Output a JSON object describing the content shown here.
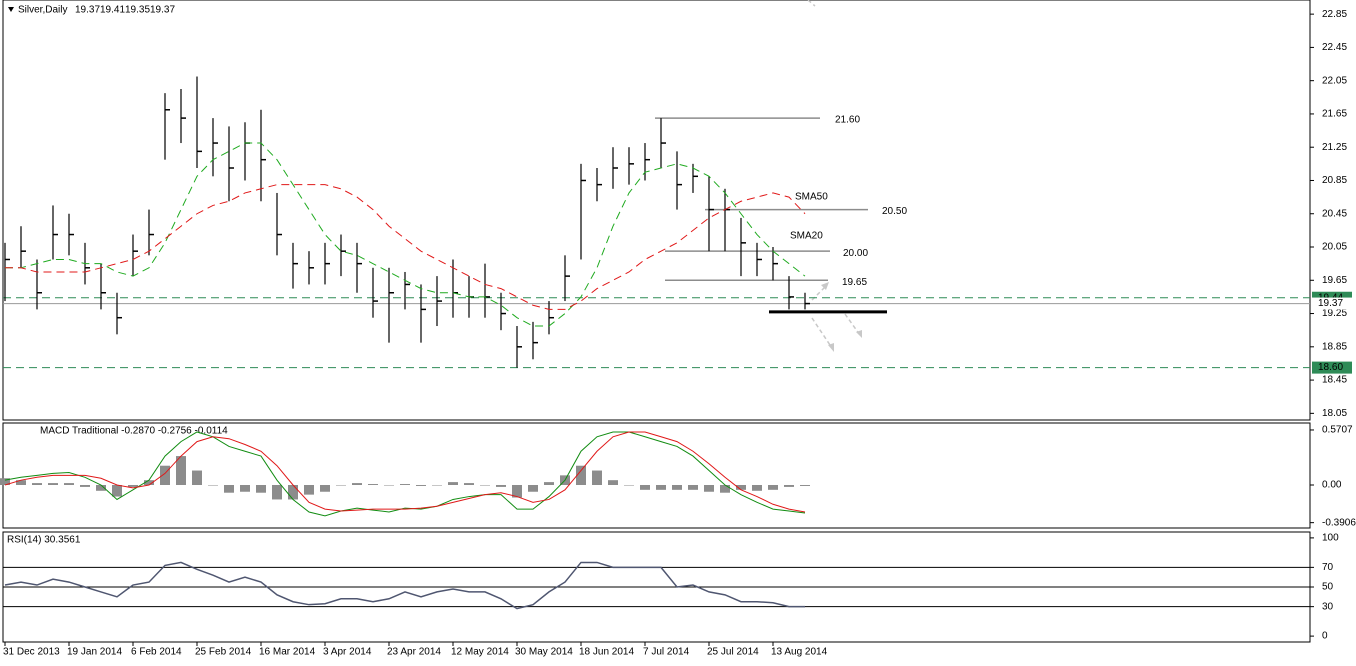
{
  "chart_data": [
    {
      "type": "hlc",
      "title": "Silver,Daily",
      "header_values": [
        19.37,
        19.41,
        19.35,
        19.37
      ],
      "categories": [
        "31 Dec 2013",
        null,
        null,
        null,
        "19 Jan 2014",
        null,
        null,
        null,
        "6 Feb 2014",
        null,
        null,
        null,
        "25 Feb 2014",
        null,
        null,
        null,
        "16 Mar 2014",
        null,
        null,
        null,
        "3 Apr 2014",
        null,
        null,
        null,
        "23 Apr 2014",
        null,
        null,
        null,
        "12 May 2014",
        null,
        null,
        null,
        "30 May 2014",
        null,
        null,
        null,
        "18 Jun 2014",
        null,
        null,
        null,
        "7 Jul 2014",
        null,
        null,
        null,
        "25 Jul 2014",
        null,
        null,
        null,
        "13 Aug 2014",
        null,
        null
      ],
      "high": [
        20.1,
        20.3,
        19.9,
        20.55,
        20.45,
        20.1,
        19.85,
        19.5,
        20.2,
        20.5,
        21.9,
        21.95,
        22.1,
        21.6,
        21.5,
        21.55,
        21.7,
        20.7,
        20.1,
        20.0,
        20.1,
        20.2,
        20.1,
        19.8,
        19.8,
        19.75,
        19.6,
        19.7,
        19.9,
        19.7,
        19.85,
        19.5,
        19.1,
        19.15,
        19.4,
        19.95,
        21.05,
        21.0,
        21.25,
        21.25,
        21.3,
        21.6,
        21.2,
        21.05,
        20.9,
        20.75,
        20.4,
        20.1,
        20.05,
        19.7,
        19.5
      ],
      "low": [
        19.4,
        19.8,
        19.3,
        19.9,
        19.95,
        19.6,
        19.3,
        19.0,
        19.7,
        19.95,
        21.1,
        21.3,
        21.0,
        20.9,
        20.6,
        20.85,
        20.6,
        19.95,
        19.55,
        19.6,
        19.6,
        19.7,
        19.5,
        19.2,
        18.9,
        19.3,
        18.9,
        19.1,
        19.2,
        19.2,
        19.2,
        19.05,
        18.6,
        18.7,
        19.0,
        19.4,
        19.9,
        20.6,
        20.75,
        20.8,
        20.85,
        21.0,
        20.5,
        20.7,
        20.0,
        20.0,
        19.7,
        19.7,
        19.65,
        19.3,
        19.3
      ],
      "close": [
        19.9,
        20.0,
        19.5,
        20.2,
        20.2,
        19.8,
        19.5,
        19.2,
        20.0,
        20.2,
        21.7,
        21.6,
        21.2,
        21.3,
        21.0,
        21.3,
        21.1,
        20.2,
        19.85,
        19.8,
        19.85,
        20.0,
        19.85,
        19.4,
        19.5,
        19.6,
        19.3,
        19.4,
        19.5,
        19.45,
        19.45,
        19.25,
        18.85,
        18.9,
        19.2,
        19.7,
        20.85,
        20.8,
        21.0,
        21.05,
        21.1,
        21.3,
        20.8,
        20.9,
        20.5,
        20.5,
        20.1,
        19.9,
        19.85,
        19.45,
        19.37
      ],
      "series": [
        {
          "name": "SMA20",
          "color": "#1faa1f",
          "values": [
            19.8,
            19.8,
            19.85,
            19.9,
            19.9,
            19.85,
            19.85,
            19.75,
            19.7,
            19.8,
            20.1,
            20.5,
            20.9,
            21.1,
            21.2,
            21.3,
            21.3,
            21.1,
            20.8,
            20.5,
            20.2,
            20.0,
            19.95,
            19.85,
            19.75,
            19.65,
            19.55,
            19.5,
            19.5,
            19.45,
            19.45,
            19.35,
            19.2,
            19.1,
            19.1,
            19.25,
            19.45,
            19.8,
            20.3,
            20.7,
            20.95,
            21.0,
            21.05,
            21.0,
            20.9,
            20.7,
            20.45,
            20.2,
            20.0,
            19.85,
            19.7
          ]
        },
        {
          "name": "SMA50",
          "color": "#e01818",
          "values": [
            19.8,
            19.8,
            19.75,
            19.75,
            19.75,
            19.75,
            19.8,
            19.85,
            19.9,
            20.0,
            20.15,
            20.3,
            20.45,
            20.55,
            20.6,
            20.7,
            20.75,
            20.8,
            20.8,
            20.8,
            20.8,
            20.75,
            20.65,
            20.5,
            20.3,
            20.15,
            20.0,
            19.9,
            19.8,
            19.7,
            19.6,
            19.55,
            19.45,
            19.35,
            19.3,
            19.3,
            19.4,
            19.55,
            19.65,
            19.75,
            19.9,
            20.0,
            20.1,
            20.25,
            20.4,
            20.5,
            20.6,
            20.65,
            20.7,
            20.65,
            20.45
          ]
        }
      ],
      "ylim": [
        17.97,
        23.02
      ],
      "yticks": [
        22.85,
        22.45,
        22.05,
        21.65,
        21.25,
        20.85,
        20.45,
        20.05,
        19.65,
        19.25,
        18.85,
        18.45,
        18.05
      ],
      "levels": [
        {
          "value": 21.6,
          "label": "21.60"
        },
        {
          "value": 20.5,
          "label": "20.50"
        },
        {
          "value": 20,
          "label": "20.00"
        },
        19.65
      ],
      "support": 19.27,
      "price_markers": [
        {
          "value": 19.44,
          "label": "19.44"
        },
        {
          "value": 18.6,
          "label": "18.60"
        }
      ],
      "last_price": 19.37
    },
    {
      "type": "macd",
      "title": "MACD Traditional -0.2870 -0.2756 -0.0114",
      "series": [
        {
          "type": "bar",
          "color": "#8c8c8c",
          "values": [
            0.07,
            0.05,
            0.02,
            0.02,
            0.02,
            -0.02,
            -0.06,
            -0.12,
            -0.02,
            0.05,
            0.2,
            0.3,
            0.15,
            0.0,
            -0.08,
            -0.07,
            -0.08,
            -0.15,
            -0.15,
            -0.1,
            -0.07,
            0.0,
            0.02,
            0.01,
            0.0,
            0.01,
            -0.01,
            0.0,
            0.03,
            0.02,
            0.0,
            -0.02,
            -0.13,
            -0.07,
            0.03,
            0.1,
            0.2,
            0.15,
            0.05,
            0.0,
            -0.05,
            -0.05,
            -0.05,
            -0.05,
            -0.07,
            -0.08,
            -0.05,
            -0.06,
            -0.05,
            -0.02,
            -0.01
          ]
        },
        {
          "type": "line",
          "color": "#118c11",
          "values": [
            0.05,
            0.08,
            0.1,
            0.12,
            0.13,
            0.08,
            0.0,
            -0.15,
            -0.05,
            0.05,
            0.3,
            0.45,
            0.55,
            0.5,
            0.4,
            0.35,
            0.3,
            0.05,
            -0.15,
            -0.28,
            -0.32,
            -0.27,
            -0.24,
            -0.26,
            -0.28,
            -0.24,
            -0.25,
            -0.22,
            -0.15,
            -0.12,
            -0.1,
            -0.1,
            -0.25,
            -0.25,
            -0.12,
            0.05,
            0.35,
            0.5,
            0.55,
            0.55,
            0.5,
            0.45,
            0.4,
            0.3,
            0.15,
            0.0,
            -0.1,
            -0.18,
            -0.25,
            -0.27,
            -0.29
          ]
        },
        {
          "type": "line",
          "color": "#e01818",
          "values": [
            0.0,
            0.05,
            0.08,
            0.1,
            0.1,
            0.1,
            0.07,
            0.0,
            -0.03,
            0.0,
            0.12,
            0.3,
            0.45,
            0.5,
            0.48,
            0.42,
            0.35,
            0.2,
            0.0,
            -0.18,
            -0.25,
            -0.27,
            -0.26,
            -0.25,
            -0.25,
            -0.25,
            -0.24,
            -0.22,
            -0.18,
            -0.14,
            -0.1,
            -0.08,
            -0.12,
            -0.18,
            -0.15,
            -0.05,
            0.15,
            0.35,
            0.5,
            0.55,
            0.55,
            0.5,
            0.45,
            0.35,
            0.22,
            0.08,
            -0.05,
            -0.12,
            -0.2,
            -0.25,
            -0.28
          ]
        }
      ],
      "ylim": [
        -0.446,
        0.643
      ],
      "yticks": [
        0.5707,
        {
          "value": 0,
          "label": "0.00"
        },
        -0.3906
      ]
    },
    {
      "type": "rsi",
      "title": "RSI(14) 30.3561",
      "series": [
        {
          "color": "#4f5670",
          "values": [
            52,
            55,
            52,
            58,
            55,
            50,
            45,
            40,
            52,
            55,
            72,
            75,
            68,
            62,
            55,
            60,
            55,
            42,
            35,
            32,
            33,
            38,
            38,
            35,
            38,
            45,
            40,
            45,
            48,
            45,
            45,
            38,
            28,
            32,
            45,
            55,
            75,
            75,
            70,
            70,
            70,
            70,
            50,
            52,
            45,
            42,
            35,
            35,
            34,
            30,
            30
          ]
        }
      ],
      "ylim": [
        -6,
        106
      ],
      "yticks": [
        100,
        70,
        50,
        30,
        0
      ],
      "levels": [
        70,
        50,
        30
      ]
    }
  ]
}
